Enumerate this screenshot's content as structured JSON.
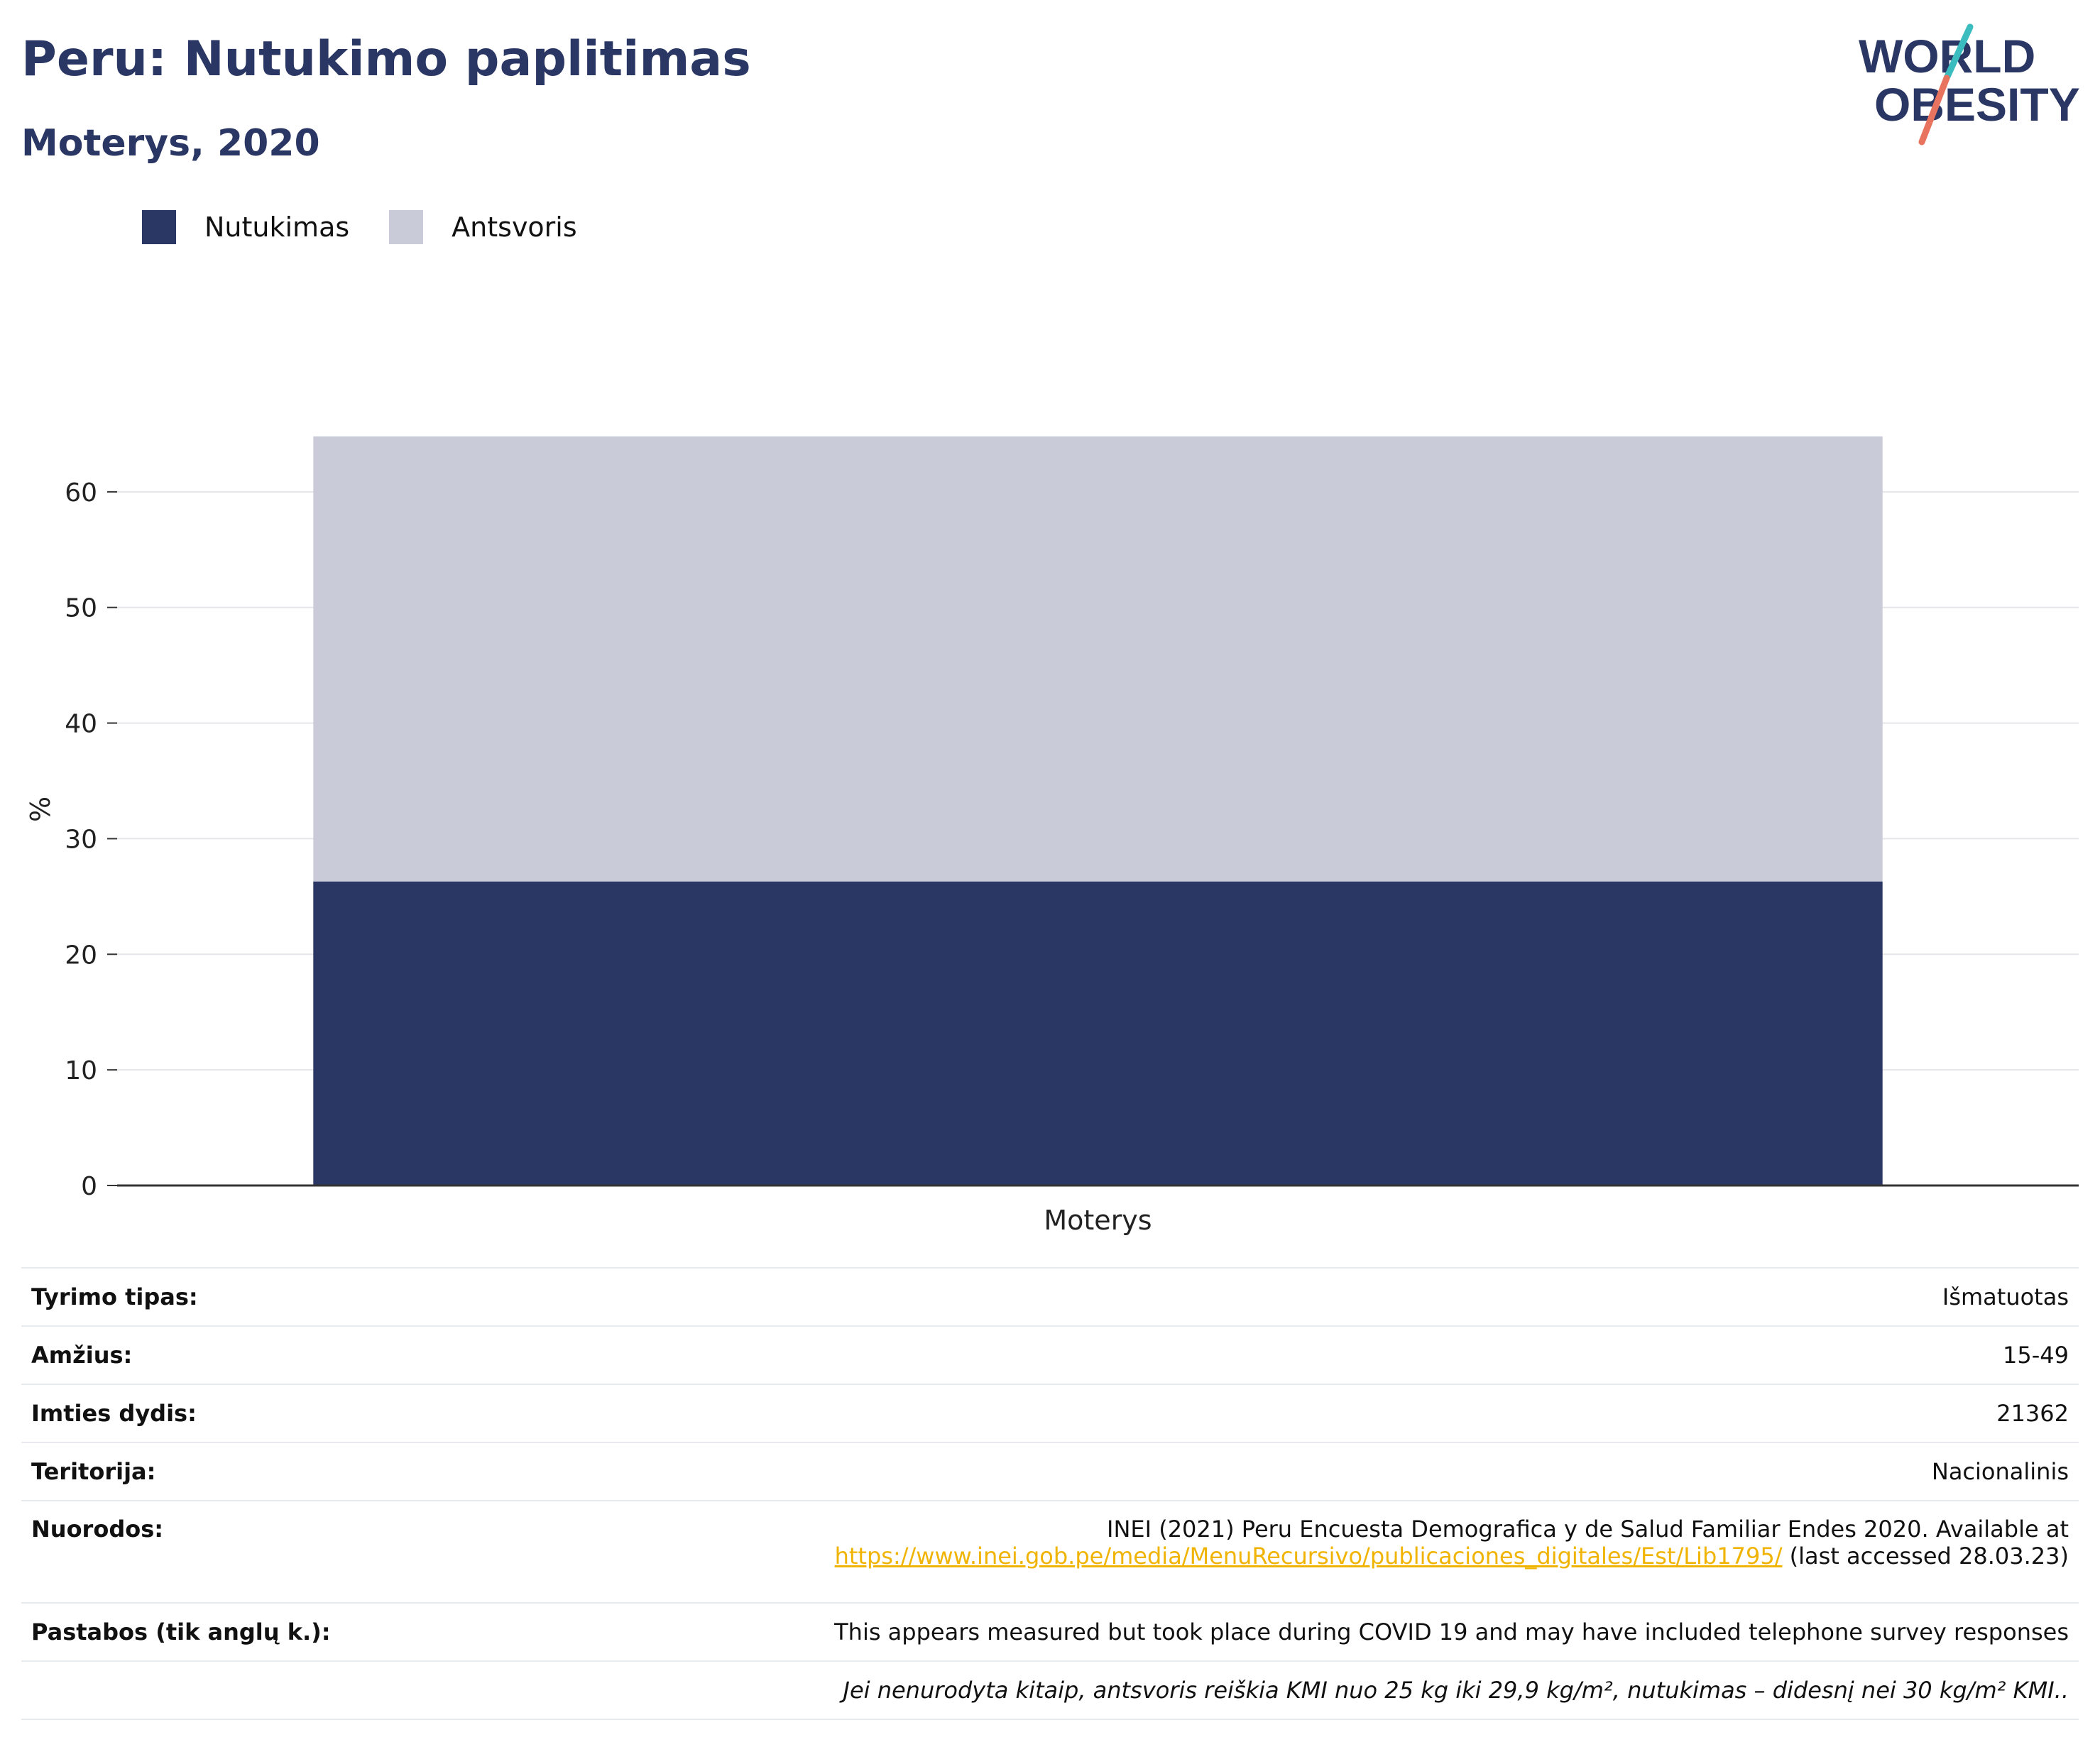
{
  "header": {
    "title": "Peru: Nutukimo paplitimas",
    "subtitle": "Moterys, 2020"
  },
  "logo": {
    "line1": "WORLD",
    "line2": "OBESITY",
    "colors": {
      "text": "#2a3663",
      "slash_top": "#3bbcbf",
      "slash_bottom": "#e8735e"
    }
  },
  "legend": [
    {
      "label": "Nutukimas",
      "color": "#2a3663"
    },
    {
      "label": "Antsvoris",
      "color": "#c9ccd8"
    }
  ],
  "chart_data": {
    "type": "bar",
    "stacked": true,
    "categories": [
      "Moterys"
    ],
    "series": [
      {
        "name": "Nutukimas",
        "values": [
          26.3
        ],
        "color": "#2a3663"
      },
      {
        "name": "Antsvoris",
        "values": [
          38.5
        ],
        "color": "#c9ccd8"
      }
    ],
    "ylabel": "%",
    "ylim": [
      0,
      70
    ],
    "yticks": [
      0,
      10,
      20,
      30,
      40,
      50,
      60
    ],
    "grid": true,
    "legend_position": "top-left"
  },
  "info": {
    "survey_type": {
      "label": "Tyrimo tipas:",
      "value": "Išmatuotas"
    },
    "age": {
      "label": "Amžius:",
      "value": "15-49"
    },
    "sample_size": {
      "label": "Imties dydis:",
      "value": "21362"
    },
    "territory": {
      "label": "Teritorija:",
      "value": "Nacionalinis"
    },
    "references": {
      "label": "Nuorodos:",
      "text": "INEI (2021) Peru Encuesta Demografica y de Salud Familiar Endes 2020. Available at",
      "link": "https://www.inei.gob.pe/media/MenuRecursivo/publicaciones_digitales/Est/Lib1795/",
      "suffix": " (last accessed 28.03.23)"
    },
    "notes": {
      "label": "Pastabos (tik anglų k.):",
      "value": "This appears measured but took place during COVID 19 and may have included telephone survey responses"
    },
    "footnote": "Jei nenurodyta kitaip, antsvoris reiškia KMI nuo 25 kg iki 29,9 kg/m², nutukimas – didesnį nei 30 kg/m² KMI.."
  }
}
